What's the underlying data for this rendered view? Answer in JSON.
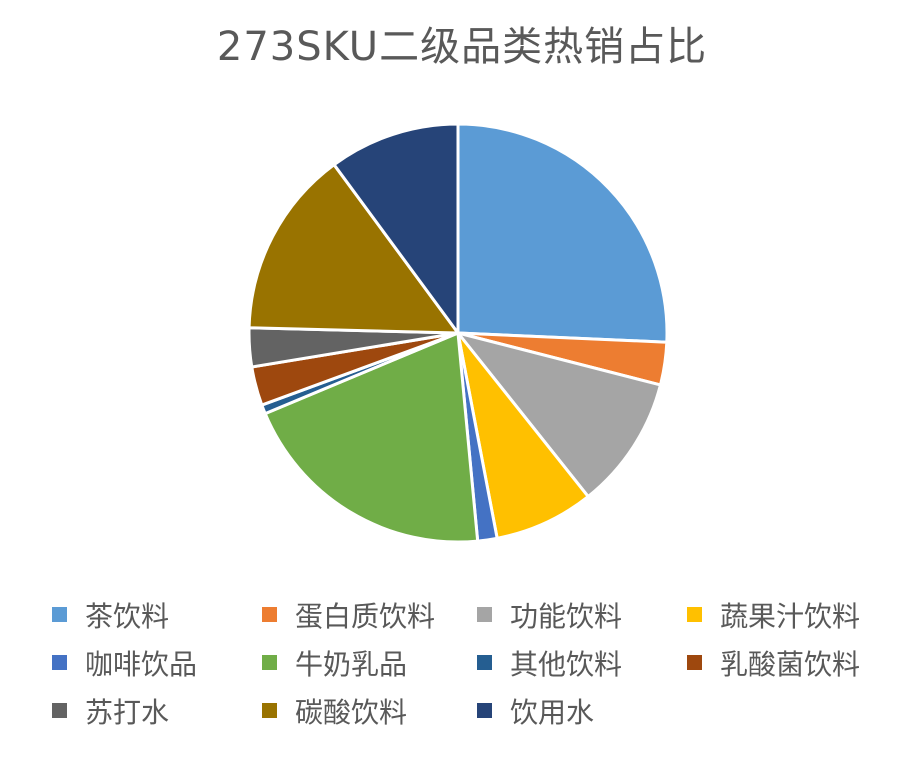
{
  "chart_data": {
    "type": "pie",
    "title": "273SKU二级品类热销占比",
    "legend_position": "bottom",
    "slices": [
      {
        "name": "茶饮料",
        "value": 25.7,
        "color": "#5B9BD5"
      },
      {
        "name": "蛋白质饮料",
        "value": 3.3,
        "color": "#ED7D31"
      },
      {
        "name": "功能饮料",
        "value": 10.3,
        "color": "#A5A5A5"
      },
      {
        "name": "蔬果汁饮料",
        "value": 7.7,
        "color": "#FFC000"
      },
      {
        "name": "咖啡饮品",
        "value": 1.5,
        "color": "#4472C4"
      },
      {
        "name": "牛奶乳品",
        "value": 20.2,
        "color": "#70AD47"
      },
      {
        "name": "其他饮料",
        "value": 0.7,
        "color": "#255E91"
      },
      {
        "name": "乳酸菌饮料",
        "value": 3.0,
        "color": "#9E480E"
      },
      {
        "name": "苏打水",
        "value": 3.0,
        "color": "#636363"
      },
      {
        "name": "碳酸饮料",
        "value": 14.5,
        "color": "#997300"
      },
      {
        "name": "饮用水",
        "value": 10.1,
        "color": "#264478"
      }
    ]
  }
}
